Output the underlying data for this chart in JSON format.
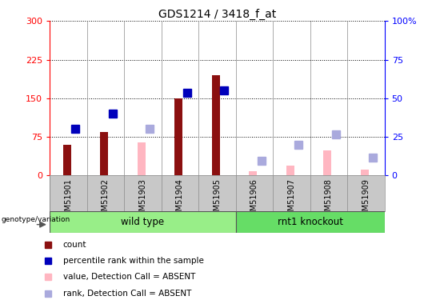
{
  "title": "GDS1214 / 3418_f_at",
  "samples": [
    "GSM51901",
    "GSM51902",
    "GSM51903",
    "GSM51904",
    "GSM51905",
    "GSM51906",
    "GSM51907",
    "GSM51908",
    "GSM51909"
  ],
  "count": [
    60,
    85,
    null,
    150,
    195,
    null,
    null,
    null,
    null
  ],
  "percentile_rank": [
    90,
    120,
    null,
    160,
    165,
    null,
    null,
    null,
    null
  ],
  "value_absent": [
    null,
    null,
    65,
    null,
    null,
    8,
    20,
    48,
    12
  ],
  "rank_absent": [
    null,
    null,
    90,
    null,
    null,
    28,
    60,
    80,
    35
  ],
  "ylim_left": [
    0,
    300
  ],
  "ylim_right": [
    0,
    100
  ],
  "yticks_left": [
    0,
    75,
    150,
    225,
    300
  ],
  "yticks_right": [
    0,
    25,
    50,
    75,
    100
  ],
  "ytick_right_labels": [
    "0",
    "25",
    "50",
    "75",
    "100%"
  ],
  "color_count": "#8B1010",
  "color_rank": "#0000BB",
  "color_value_absent": "#FFB6C1",
  "color_rank_absent": "#AAAADD",
  "bar_width": 0.22,
  "marker_size": 7,
  "wt_color": "#98EE88",
  "ko_color": "#66DD66",
  "xlabel_bg": "#C8C8C8",
  "legend_items": [
    {
      "color": "#8B1010",
      "label": "count"
    },
    {
      "color": "#0000BB",
      "label": "percentile rank within the sample"
    },
    {
      "color": "#FFB6C1",
      "label": "value, Detection Call = ABSENT"
    },
    {
      "color": "#AAAADD",
      "label": "rank, Detection Call = ABSENT"
    }
  ]
}
